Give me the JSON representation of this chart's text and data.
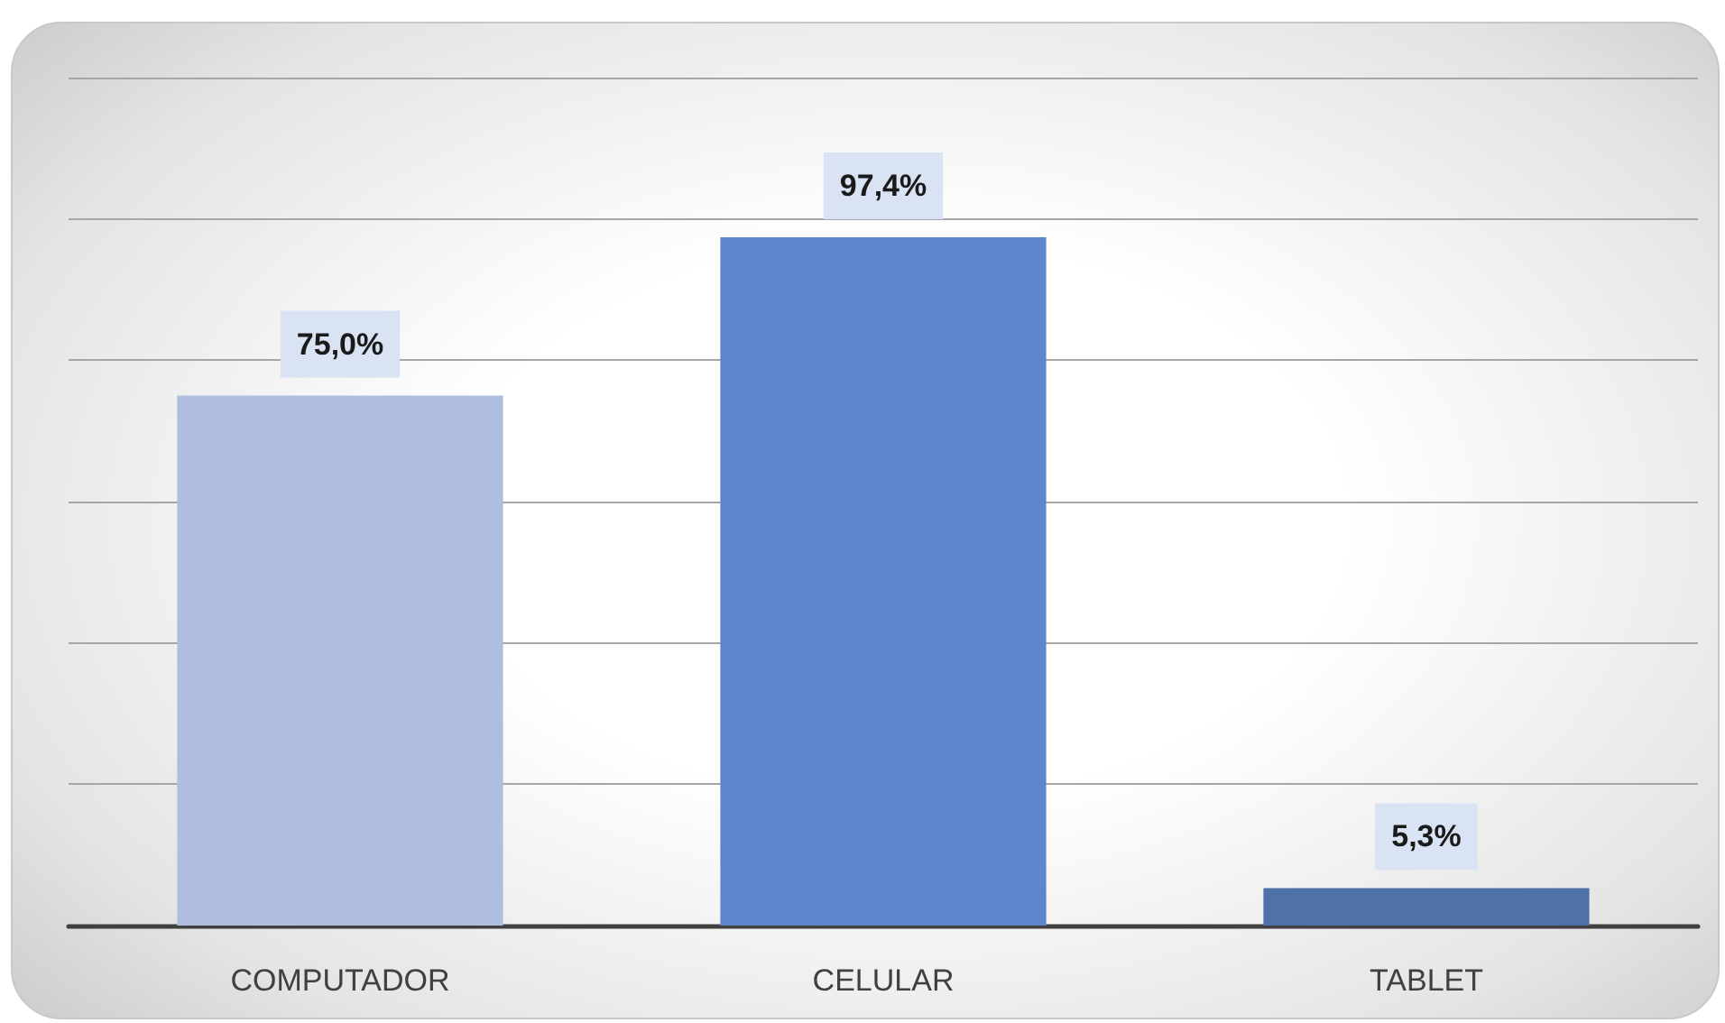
{
  "chart_data": {
    "type": "bar",
    "categories": [
      "COMPUTADOR",
      "CELULAR",
      "TABLET"
    ],
    "values": [
      75.0,
      97.4,
      5.3
    ],
    "colors": [
      "#afbddf",
      "#5e86cc",
      "#4f71aa"
    ],
    "value_labels": [
      "75,0%",
      "97,4%",
      "5,3%"
    ],
    "ylim": [
      0,
      120
    ],
    "yticks": [
      {
        "value": 0,
        "label": null
      },
      {
        "value": 20,
        "label": null
      },
      {
        "value": 40,
        "label": null
      },
      {
        "value": 60,
        "label": null
      },
      {
        "value": 80,
        "label": null
      },
      {
        "value": 100,
        "label": null
      },
      {
        "value": 120,
        "label": null
      }
    ],
    "grid": "y",
    "tick_labels": "x"
  }
}
